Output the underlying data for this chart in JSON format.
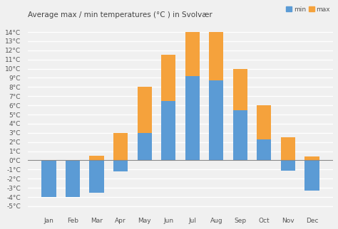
{
  "months": [
    "Jan",
    "Feb",
    "Mar",
    "Apr",
    "May",
    "Jun",
    "Jul",
    "Aug",
    "Sep",
    "Oct",
    "Nov",
    "Dec"
  ],
  "min_temps": [
    -4,
    -4,
    -3.5,
    -1.2,
    3,
    6.5,
    9.2,
    8.7,
    5.5,
    2.3,
    -1.1,
    -3.3
  ],
  "max_temps": [
    -0.1,
    -0.1,
    0.5,
    3,
    8,
    11.5,
    14,
    14,
    10,
    6,
    2.5,
    0.4
  ],
  "min_color": "#5b9bd5",
  "max_color": "#f5a23c",
  "title": "Average max / min temperatures (°C ) in Svolvær",
  "ylabel_ticks": [
    -5,
    -4,
    -3,
    -2,
    -1,
    0,
    1,
    2,
    3,
    4,
    5,
    6,
    7,
    8,
    9,
    10,
    11,
    12,
    13,
    14
  ],
  "ylim": [
    -5.5,
    15
  ],
  "background_color": "#f0f0f0",
  "grid_color": "#ffffff",
  "legend_min": "min",
  "legend_max": "max",
  "title_fontsize": 7.5,
  "tick_fontsize": 6.5
}
